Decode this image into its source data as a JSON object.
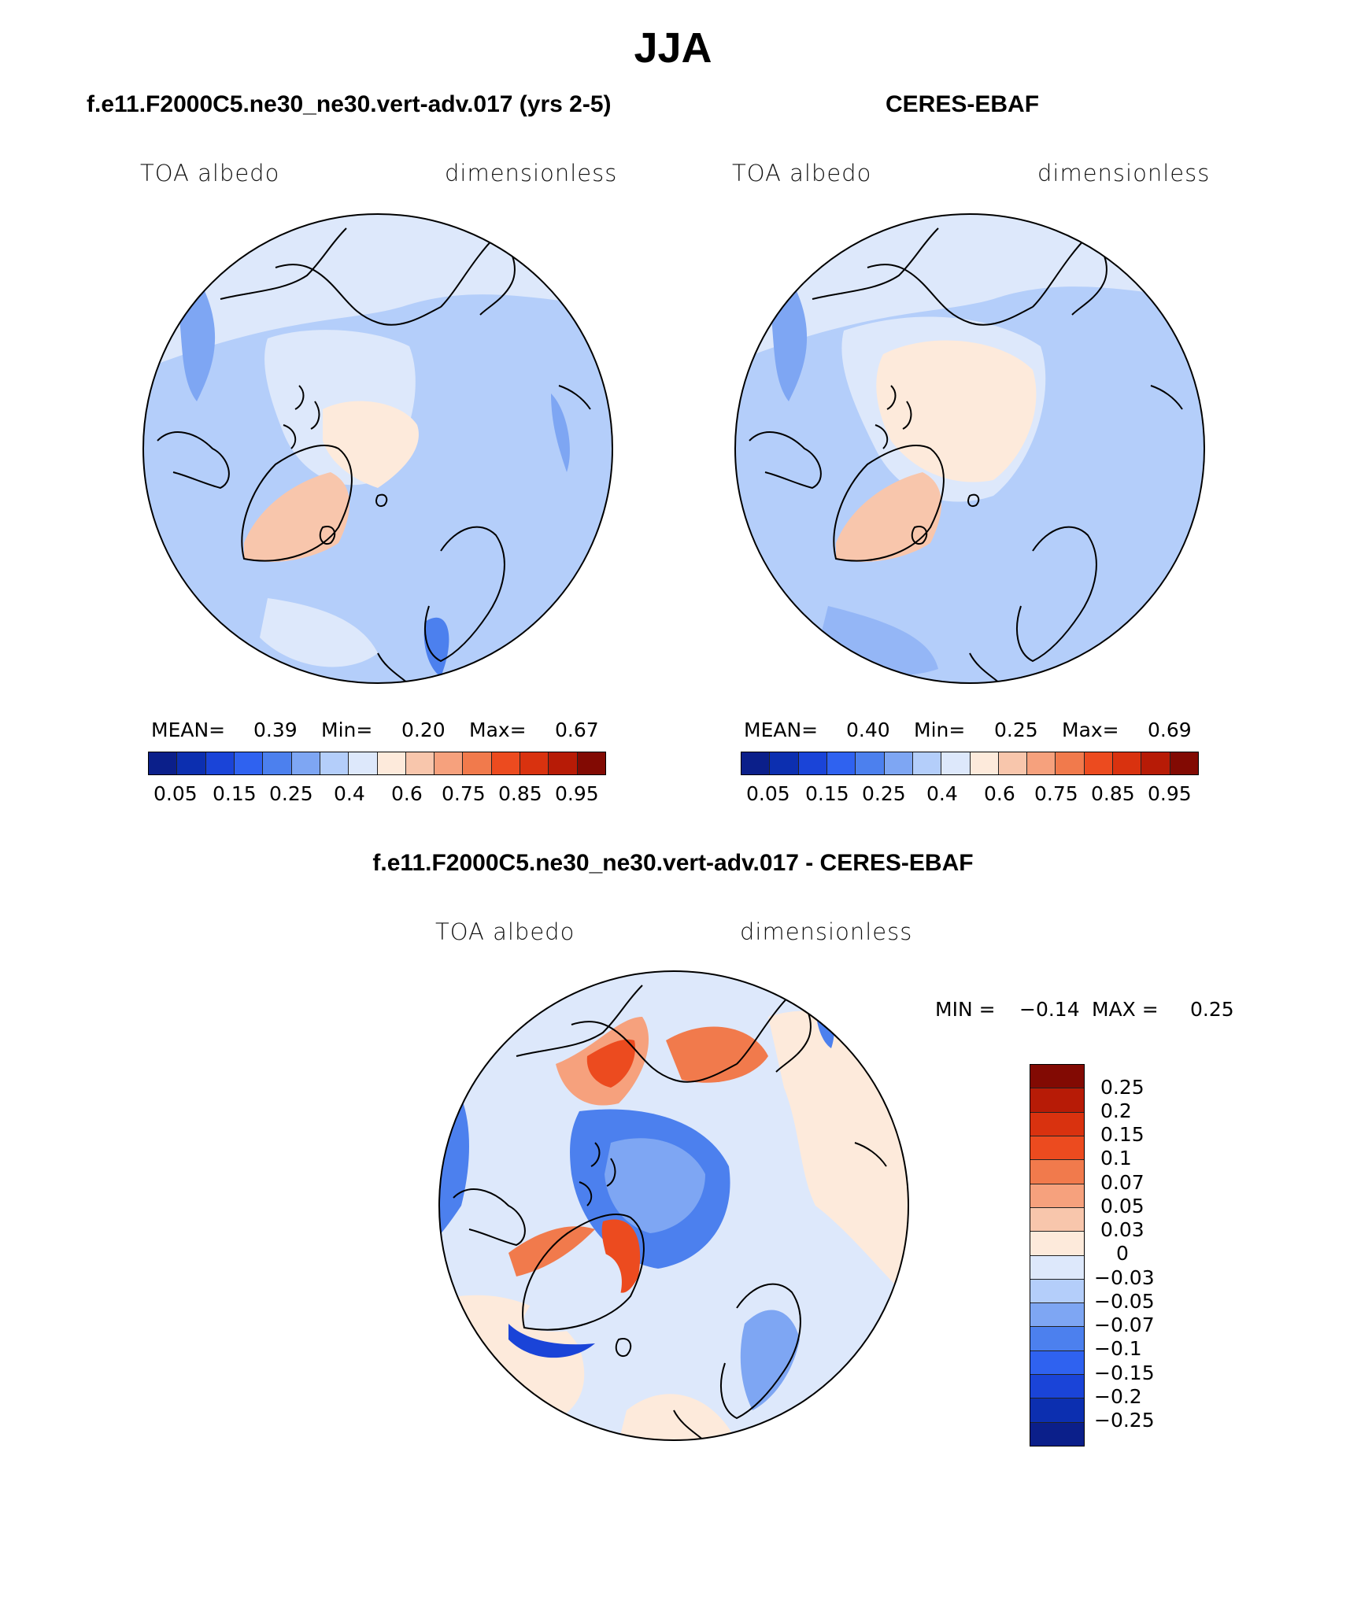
{
  "title": "JJA",
  "colors": {
    "abs_scale": [
      "#0b1f8a",
      "#0c2fb0",
      "#1a44d8",
      "#2f62f0",
      "#4c80ee",
      "#7ea6f3",
      "#b4cefa",
      "#dde8fb",
      "#fdeadb",
      "#f8c6ac",
      "#f6a17d",
      "#f17a4c",
      "#ec4b1f",
      "#d9320f",
      "#b71b06",
      "#820a03"
    ],
    "diff_scale": [
      "#820a03",
      "#b71b06",
      "#d9320f",
      "#ec4b1f",
      "#f17a4c",
      "#f6a17d",
      "#f8c6ac",
      "#fdeadb",
      "#dde8fb",
      "#b4cefa",
      "#7ea6f3",
      "#4c80ee",
      "#2f62f0",
      "#1a44d8",
      "#0c2fb0",
      "#0b1f8a"
    ]
  },
  "panels": {
    "model": {
      "title": "f.e11.F2000C5.ne30_ne30.vert-adv.017 (yrs 2-5)",
      "left_label": "TOA albedo",
      "right_label": "dimensionless",
      "mean_label": "MEAN=",
      "mean": "0.39",
      "min_label": "Min=",
      "min": "0.20",
      "max_label": "Max=",
      "max": "0.67",
      "ticks": [
        "0.05",
        "0.15",
        "0.25",
        "0.4",
        "0.6",
        "0.75",
        "0.85",
        "0.95"
      ]
    },
    "obs": {
      "title": "CERES-EBAF",
      "left_label": "TOA albedo",
      "right_label": "dimensionless",
      "mean_label": "MEAN=",
      "mean": "0.40",
      "min_label": "Min=",
      "min": "0.25",
      "max_label": "Max=",
      "max": "0.69",
      "ticks": [
        "0.05",
        "0.15",
        "0.25",
        "0.4",
        "0.6",
        "0.75",
        "0.85",
        "0.95"
      ]
    },
    "diff": {
      "title": "f.e11.F2000C5.ne30_ne30.vert-adv.017 - CERES-EBAF",
      "left_label": "TOA albedo",
      "right_label": "dimensionless",
      "min_label": "MIN =",
      "min": "−0.14",
      "max_label": "MAX =",
      "max": "0.25",
      "ticks": [
        "0.25",
        "0.2",
        "0.15",
        "0.1",
        "0.07",
        "0.05",
        "0.03",
        "0",
        "−0.03",
        "−0.05",
        "−0.07",
        "−0.1",
        "−0.15",
        "−0.2",
        "−0.25"
      ]
    }
  }
}
